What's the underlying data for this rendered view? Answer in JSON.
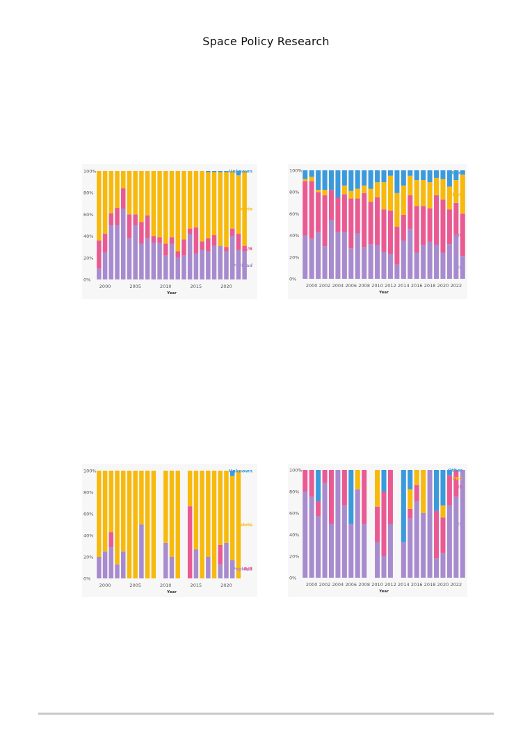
{
  "header": {
    "title": "Space Policy Research"
  },
  "colors": {
    "payload": "#a78bce",
    "rb": "#ea5a92",
    "debris": "#f7b90c",
    "unknown": "#3b9adc",
    "us": "#a78bce",
    "cis": "#ea5a92",
    "prc": "#f7b90c",
    "other": "#3b9adc",
    "axis_text": "#555555"
  },
  "chart_data": [
    {
      "type": "bar",
      "stacked": true,
      "percent": true,
      "xlabel": "Year",
      "ylabel": "",
      "ylim": [
        0,
        100
      ],
      "yticks": [
        "0%",
        "20%",
        "40%",
        "60%",
        "80%",
        "100%"
      ],
      "xticks": [
        2000,
        2005,
        2010,
        2015,
        2020
      ],
      "categories": [
        1999,
        2000,
        2001,
        2002,
        2003,
        2004,
        2005,
        2006,
        2007,
        2008,
        2009,
        2010,
        2011,
        2012,
        2013,
        2014,
        2015,
        2016,
        2017,
        2018,
        2019,
        2020,
        2021,
        2022,
        2023
      ],
      "series": [
        {
          "name": "Payload",
          "color_key": "payload",
          "values": [
            10,
            25,
            50,
            50,
            65,
            38,
            50,
            33,
            38,
            34,
            34,
            22,
            33,
            20,
            22,
            42,
            24,
            27,
            26,
            31,
            31,
            26,
            40,
            27,
            26
          ]
        },
        {
          "name": "R/B",
          "color_key": "rb",
          "values": [
            26,
            17,
            11,
            16,
            19,
            22,
            10,
            20,
            21,
            6,
            5,
            11,
            6,
            6,
            15,
            5,
            24,
            8,
            12,
            10,
            0,
            4,
            7,
            15,
            5
          ]
        },
        {
          "name": "Debris",
          "color_key": "debris",
          "values": [
            64,
            58,
            39,
            34,
            16,
            40,
            40,
            47,
            41,
            60,
            61,
            67,
            61,
            74,
            63,
            53,
            52,
            65,
            61,
            58,
            68,
            69,
            53,
            54,
            69
          ]
        },
        {
          "name": "Unknown",
          "color_key": "unknown",
          "values": [
            0,
            0,
            0,
            0,
            0,
            0,
            0,
            0,
            0,
            0,
            0,
            0,
            0,
            0,
            0,
            0,
            0,
            0,
            1,
            1,
            1,
            1,
            0,
            4,
            0
          ]
        }
      ]
    },
    {
      "type": "bar",
      "stacked": true,
      "percent": true,
      "xlabel": "Year",
      "ylabel": "",
      "ylim": [
        0,
        100
      ],
      "yticks": [
        "0%",
        "20%",
        "40%",
        "60%",
        "80%",
        "100%"
      ],
      "xticks": [
        2000,
        2002,
        2004,
        2006,
        2008,
        2010,
        2012,
        2014,
        2016,
        2018,
        2020,
        2022
      ],
      "categories": [
        1999,
        2000,
        2001,
        2002,
        2003,
        2004,
        2005,
        2006,
        2007,
        2008,
        2009,
        2010,
        2011,
        2012,
        2013,
        2014,
        2015,
        2016,
        2017,
        2018,
        2019,
        2020,
        2021,
        2022,
        2023
      ],
      "series": [
        {
          "name": "US",
          "color_key": "us",
          "values": [
            40,
            37,
            43,
            30,
            54,
            43,
            43,
            28,
            42,
            29,
            32,
            31,
            25,
            23,
            13,
            35,
            46,
            24,
            31,
            34,
            31,
            24,
            32,
            41,
            21
          ]
        },
        {
          "name": "CIS",
          "color_key": "cis",
          "values": [
            50,
            53,
            37,
            47,
            28,
            32,
            35,
            46,
            32,
            50,
            39,
            44,
            39,
            40,
            35,
            24,
            31,
            43,
            36,
            31,
            46,
            49,
            32,
            29,
            39
          ]
        },
        {
          "name": "PRC",
          "color_key": "prc",
          "values": [
            2,
            4,
            2,
            5,
            0,
            0,
            8,
            7,
            9,
            7,
            12,
            14,
            25,
            32,
            31,
            27,
            18,
            24,
            24,
            24,
            16,
            19,
            21,
            21,
            36
          ]
        },
        {
          "name": "Other",
          "color_key": "other",
          "values": [
            8,
            6,
            18,
            18,
            18,
            25,
            14,
            19,
            17,
            14,
            17,
            11,
            11,
            5,
            21,
            14,
            5,
            9,
            9,
            11,
            7,
            8,
            15,
            9,
            4
          ]
        }
      ]
    },
    {
      "type": "bar",
      "stacked": true,
      "percent": true,
      "xlabel": "Year",
      "ylabel": "",
      "ylim": [
        0,
        100
      ],
      "yticks": [
        "0%",
        "20%",
        "40%",
        "60%",
        "80%",
        "100%"
      ],
      "xticks": [
        2000,
        2005,
        2010,
        2015,
        2020
      ],
      "categories": [
        1999,
        2000,
        2001,
        2002,
        2003,
        2004,
        2005,
        2006,
        2007,
        2008,
        2009,
        2010,
        2011,
        2012,
        2013,
        2014,
        2015,
        2016,
        2017,
        2018,
        2019,
        2020,
        2021,
        2022,
        2023
      ],
      "series": [
        {
          "name": "Payload",
          "color_key": "payload",
          "values": [
            20,
            25,
            29,
            13,
            25,
            0,
            0,
            50,
            0,
            0,
            null,
            33,
            20,
            0,
            null,
            0,
            27,
            0,
            20,
            0,
            13,
            33,
            17,
            0,
            null
          ]
        },
        {
          "name": "R/B",
          "color_key": "rb",
          "values": [
            0,
            0,
            14,
            0,
            0,
            0,
            0,
            0,
            0,
            0,
            null,
            0,
            0,
            0,
            null,
            67,
            0,
            0,
            0,
            0,
            18,
            0,
            0,
            0,
            null
          ]
        },
        {
          "name": "Debris",
          "color_key": "debris",
          "values": [
            80,
            75,
            57,
            87,
            75,
            100,
            100,
            50,
            100,
            100,
            null,
            67,
            80,
            100,
            null,
            33,
            73,
            100,
            80,
            100,
            69,
            67,
            78,
            100,
            null
          ]
        },
        {
          "name": "Unknown",
          "color_key": "unknown",
          "values": [
            0,
            0,
            0,
            0,
            0,
            0,
            0,
            0,
            0,
            0,
            null,
            0,
            0,
            0,
            null,
            0,
            0,
            0,
            0,
            0,
            0,
            0,
            5,
            0,
            null
          ]
        }
      ]
    },
    {
      "type": "bar",
      "stacked": true,
      "percent": true,
      "xlabel": "Year",
      "ylabel": "",
      "ylim": [
        0,
        100
      ],
      "yticks": [
        "0%",
        "20%",
        "40%",
        "60%",
        "80%",
        "100%"
      ],
      "xticks": [
        2000,
        2002,
        2004,
        2006,
        2008,
        2010,
        2012,
        2014,
        2016,
        2018,
        2020,
        2022
      ],
      "categories": [
        1999,
        2000,
        2001,
        2002,
        2003,
        2004,
        2005,
        2006,
        2007,
        2008,
        2009,
        2010,
        2011,
        2012,
        2013,
        2014,
        2015,
        2016,
        2017,
        2018,
        2019,
        2020,
        2021,
        2022,
        2023
      ],
      "series": [
        {
          "name": "US",
          "color_key": "us",
          "values": [
            80,
            75,
            57,
            88,
            50,
            100,
            67,
            50,
            82,
            50,
            null,
            33,
            20,
            50,
            null,
            33,
            55,
            71,
            60,
            100,
            18,
            23,
            67,
            75,
            100
          ]
        },
        {
          "name": "CIS",
          "color_key": "cis",
          "values": [
            20,
            25,
            14,
            12,
            50,
            0,
            33,
            0,
            0,
            50,
            null,
            33,
            60,
            50,
            null,
            0,
            9,
            15,
            0,
            0,
            44,
            33,
            28,
            25,
            0
          ]
        },
        {
          "name": "PRC",
          "color_key": "prc",
          "values": [
            0,
            0,
            0,
            0,
            0,
            0,
            0,
            0,
            18,
            0,
            null,
            34,
            0,
            0,
            null,
            0,
            18,
            14,
            40,
            0,
            0,
            11,
            0,
            0,
            0
          ]
        },
        {
          "name": "Other",
          "color_key": "other",
          "values": [
            0,
            0,
            29,
            0,
            0,
            0,
            0,
            50,
            0,
            0,
            null,
            0,
            20,
            0,
            null,
            67,
            18,
            0,
            0,
            0,
            38,
            33,
            5,
            0,
            0
          ]
        }
      ]
    }
  ]
}
